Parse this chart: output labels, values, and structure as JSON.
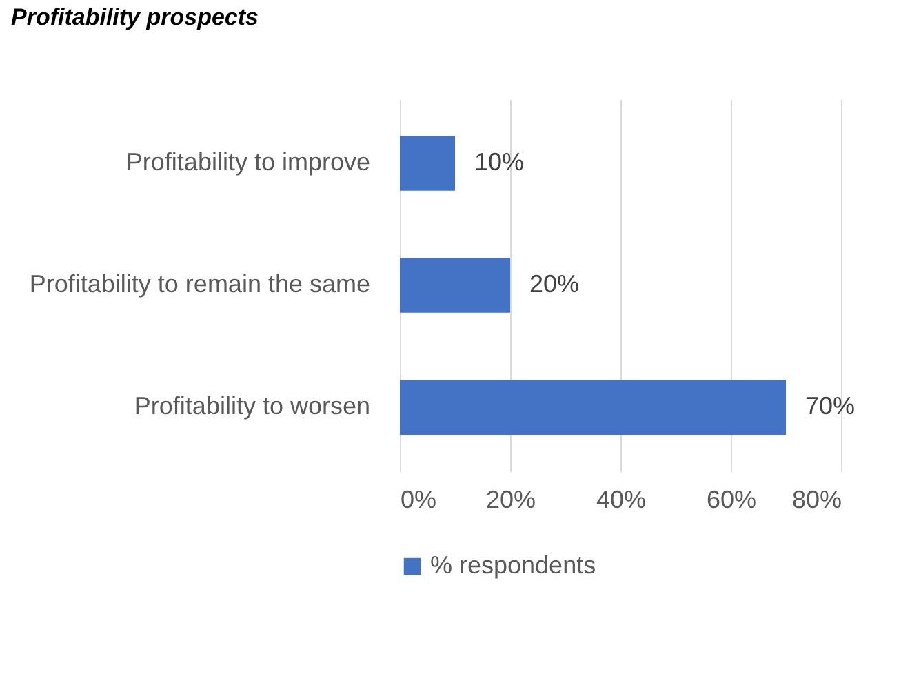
{
  "chart_data": {
    "type": "bar",
    "orientation": "horizontal",
    "title": "Profitability prospects",
    "categories": [
      "Profitability to improve",
      "Profitability to remain the same",
      "Profitability to worsen"
    ],
    "series": [
      {
        "name": "% respondents",
        "color": "#4472c4",
        "values": [
          10,
          20,
          70
        ],
        "value_labels": [
          "10%",
          "20%",
          "70%"
        ]
      }
    ],
    "xlim": [
      0,
      80
    ],
    "xticks": [
      {
        "value": 0,
        "label": "0%"
      },
      {
        "value": 20,
        "label": "20%"
      },
      {
        "value": 40,
        "label": "40%"
      },
      {
        "value": 60,
        "label": "60%"
      },
      {
        "value": 80,
        "label": "80%"
      }
    ],
    "grid": "x",
    "legend": "bottom"
  }
}
